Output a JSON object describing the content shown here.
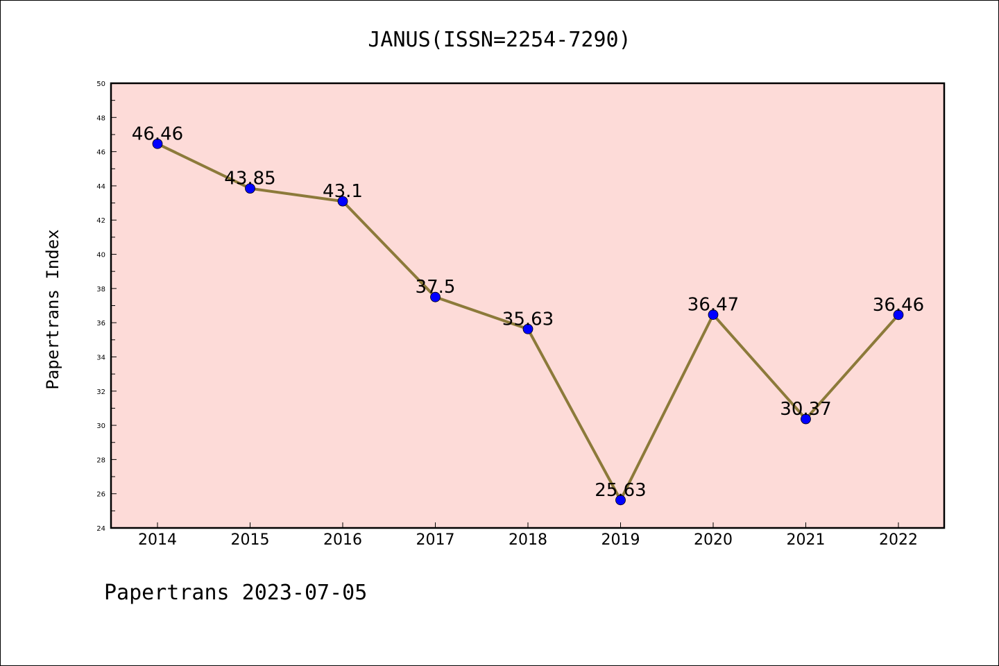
{
  "chart_data": {
    "type": "line",
    "title": "JANUS(ISSN=2254-7290)",
    "xlabel": "",
    "ylabel": "Papertrans Index",
    "categories": [
      "2014",
      "2015",
      "2016",
      "2017",
      "2018",
      "2019",
      "2020",
      "2021",
      "2022"
    ],
    "series": [
      {
        "values": [
          46.46,
          43.85,
          43.1,
          37.5,
          35.63,
          25.63,
          36.47,
          30.37,
          36.46
        ],
        "labels": [
          "46.46",
          "43.85",
          "43.1",
          "37.5",
          "35.63",
          "25.63",
          "36.47",
          "30.37",
          "36.46"
        ]
      }
    ],
    "ylim": [
      24,
      50
    ],
    "yticks": [
      "24",
      "26",
      "28",
      "30",
      "32",
      "34",
      "36",
      "38",
      "40",
      "42",
      "44",
      "46",
      "48",
      "50"
    ],
    "grid": false,
    "colors": {
      "plot_background": "#fddbd8",
      "line": "#8c7a3a",
      "marker": "#0000ff"
    }
  },
  "footer": "Papertrans 2023-07-05"
}
